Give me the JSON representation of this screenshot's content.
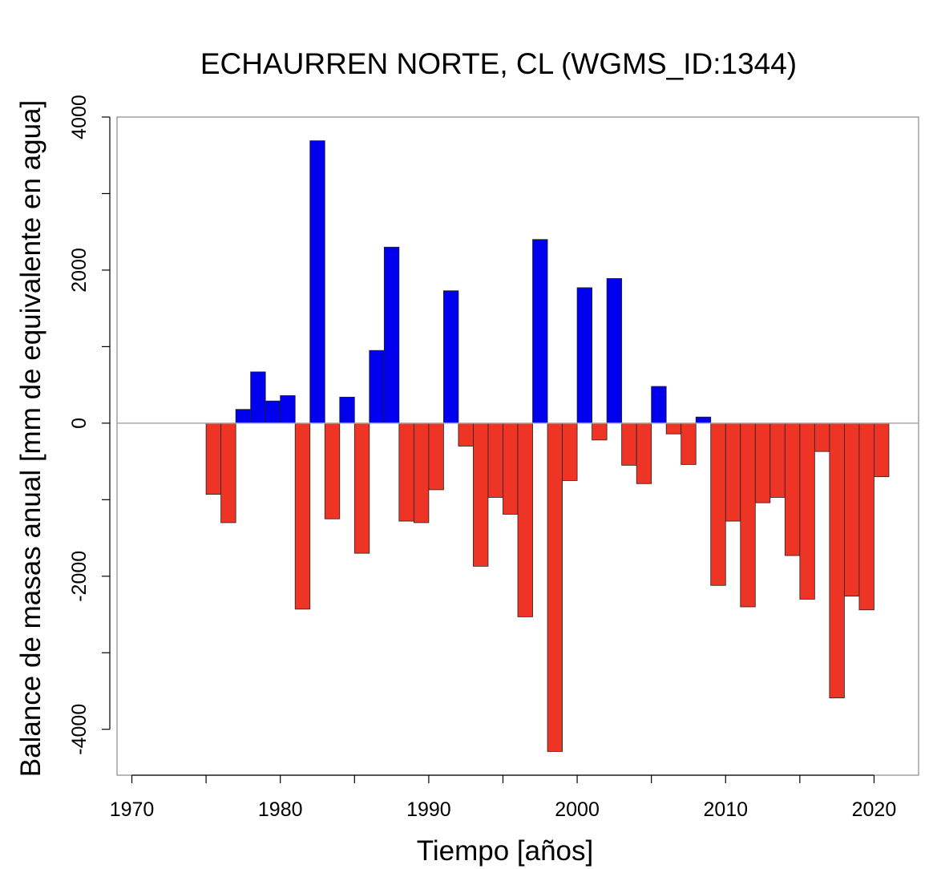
{
  "chart_data": {
    "type": "bar",
    "title": "ECHAURREN NORTE, CL (WGMS_ID:1344)",
    "xlabel": "Tiempo [años]",
    "ylabel": "Balance de masas anual [mm de equivalente en agua]",
    "xlim": [
      1969,
      2023
    ],
    "ylim": [
      -4600,
      4000
    ],
    "x_ticks": [
      1970,
      1980,
      1990,
      2000,
      2010,
      2020
    ],
    "y_ticks": [
      -4000,
      -2000,
      0,
      2000,
      4000
    ],
    "grid": false,
    "legend": "none",
    "positive_color": "#0000ee",
    "negative_color": "#ee3424",
    "years": [
      1976,
      1977,
      1978,
      1979,
      1980,
      1981,
      1982,
      1983,
      1984,
      1985,
      1986,
      1987,
      1988,
      1989,
      1990,
      1991,
      1992,
      1993,
      1994,
      1995,
      1996,
      1997,
      1998,
      1999,
      2000,
      2001,
      2002,
      2003,
      2004,
      2005,
      2006,
      2007,
      2008,
      2009,
      2010,
      2011,
      2012,
      2013,
      2014,
      2015,
      2016,
      2017,
      2018,
      2019,
      2020,
      2021,
      2022
    ],
    "values": [
      -930,
      -1300,
      180,
      670,
      290,
      360,
      -2430,
      3690,
      -1250,
      340,
      -1700,
      950,
      2300,
      -1280,
      -1300,
      -870,
      1730,
      -300,
      -1870,
      -970,
      -1190,
      -2530,
      2400,
      -4290,
      -750,
      1770,
      -220,
      1890,
      -550,
      -790,
      480,
      -140,
      -540,
      80,
      -2120,
      -1280,
      -2400,
      -1040,
      -970,
      -1730,
      -2300,
      -370,
      -3590,
      -2260,
      -2440,
      -700,
      0
    ]
  }
}
